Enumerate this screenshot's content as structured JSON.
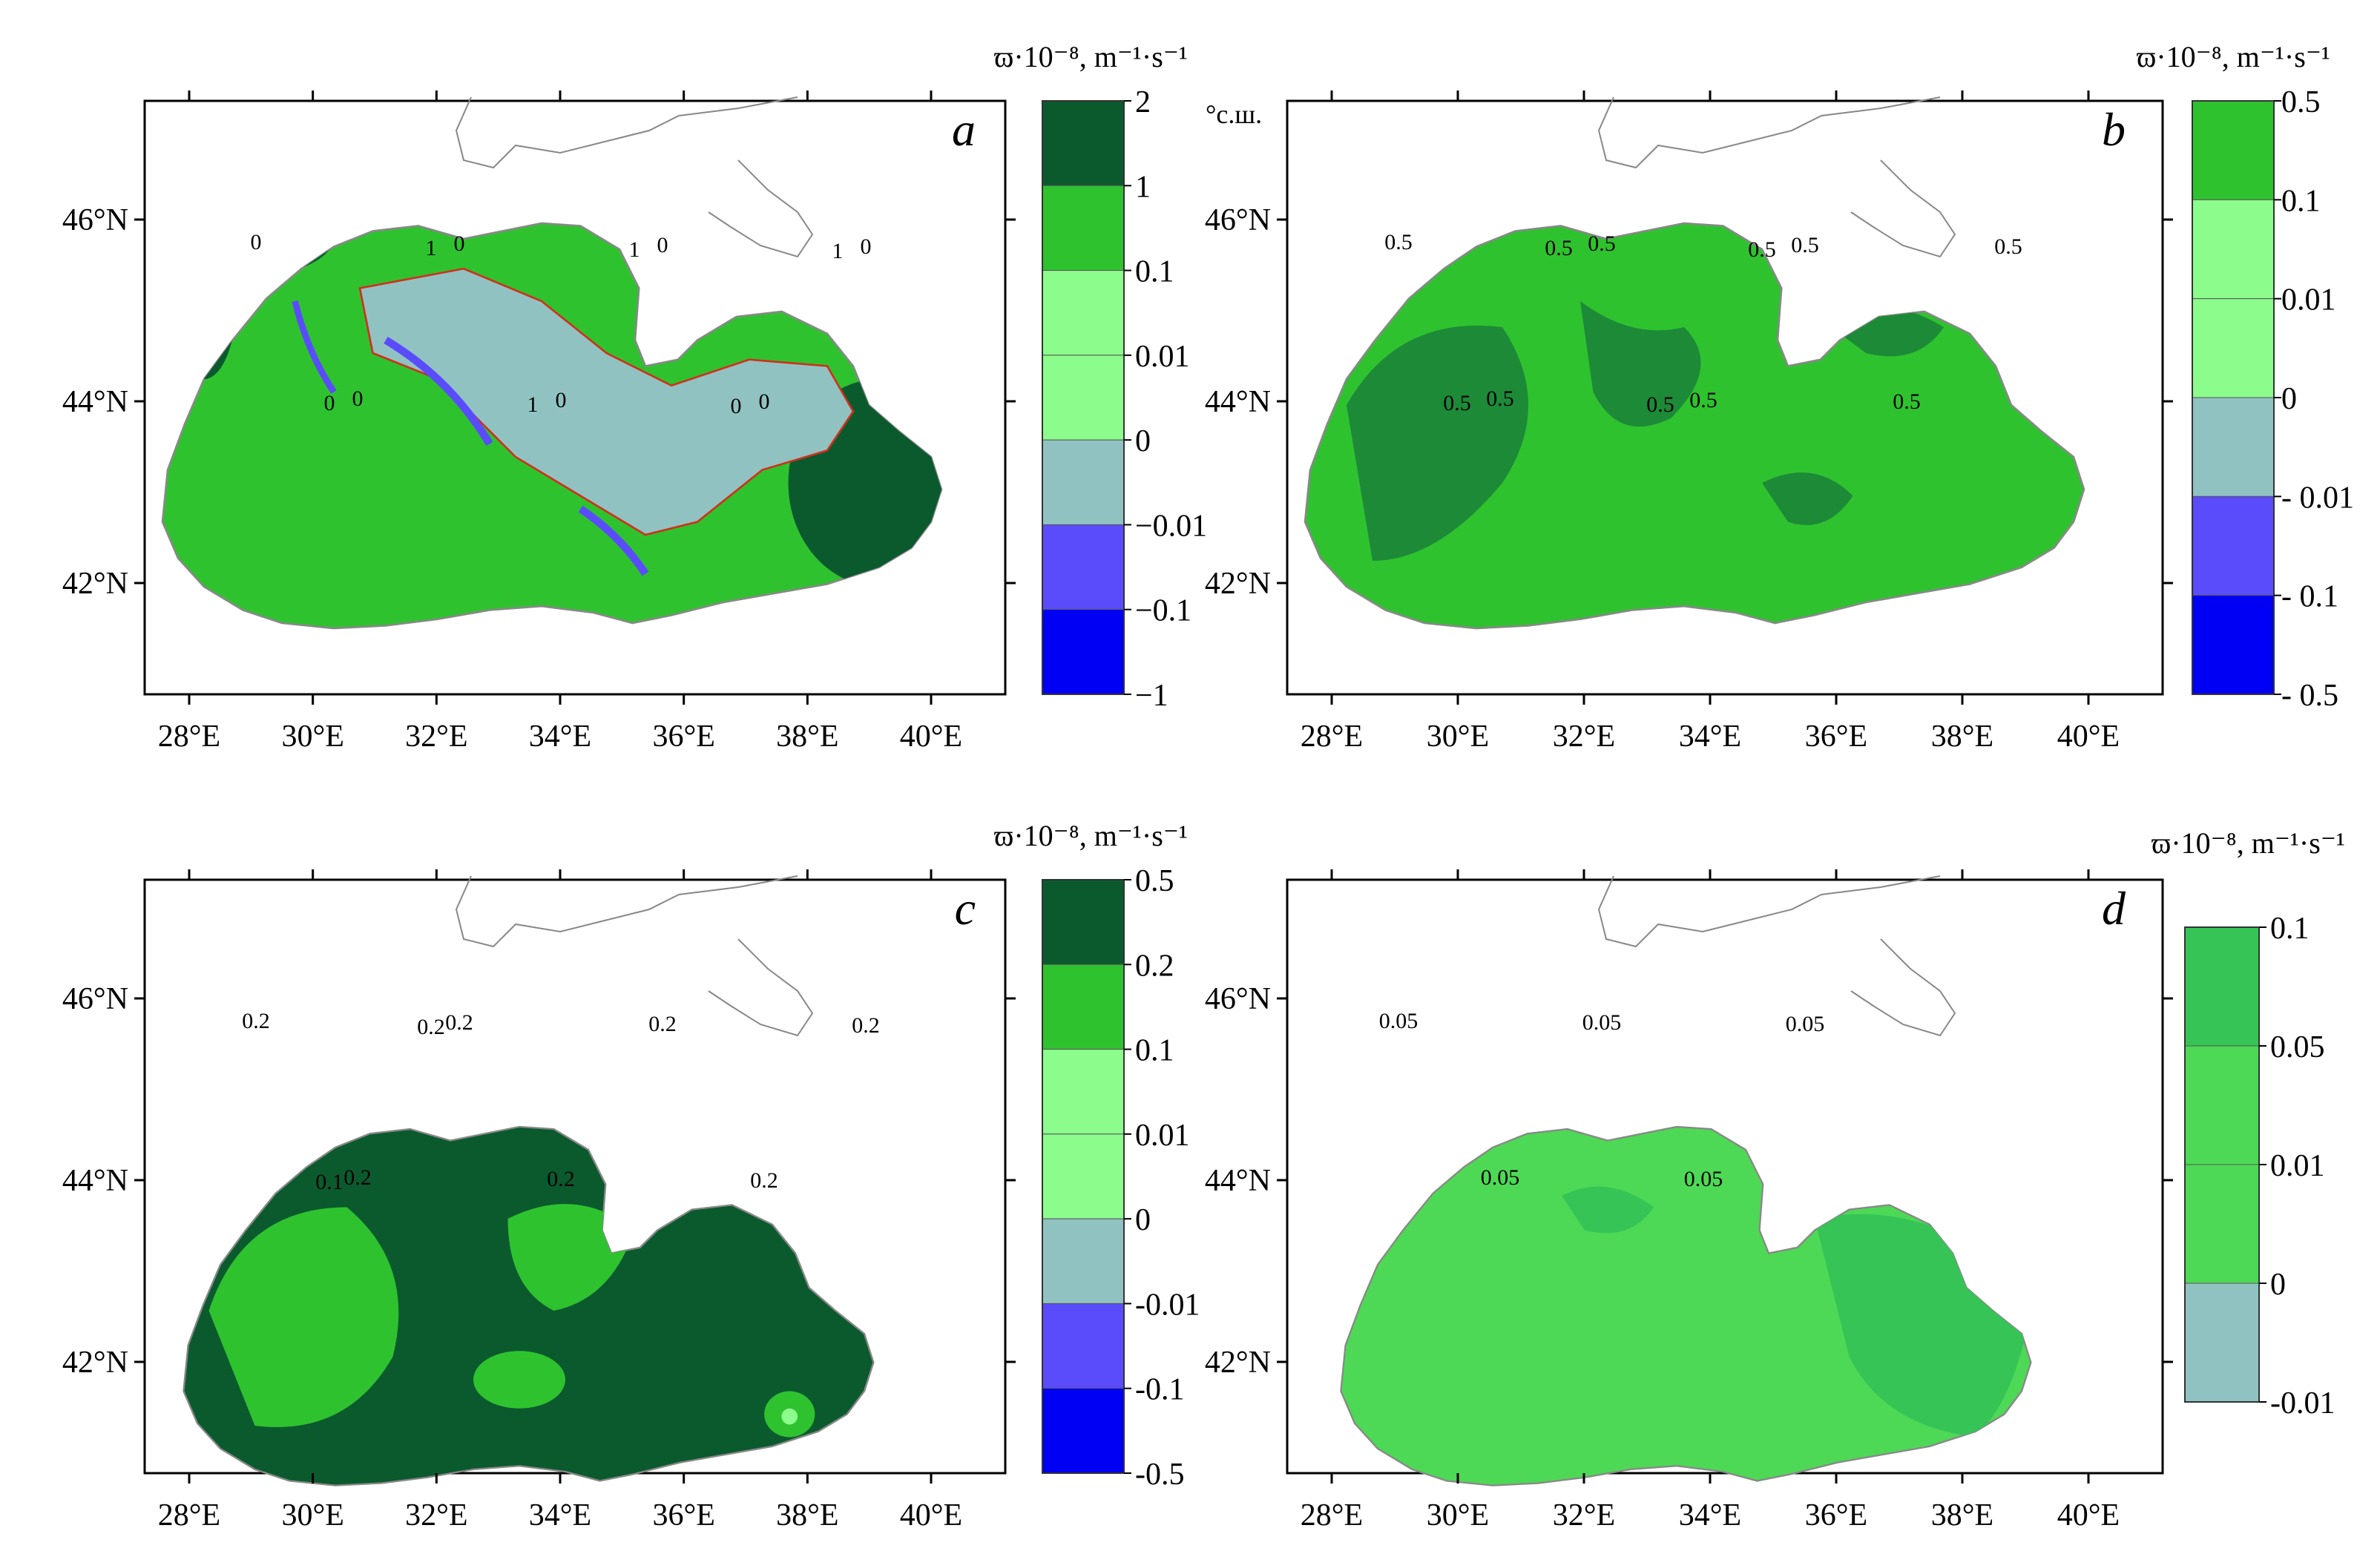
{
  "figure": {
    "panels": [
      {
        "id": "a",
        "letter": "a",
        "colorbar_title": "ϖ·10⁻⁸, m⁻¹·s⁻¹",
        "corner_label": "",
        "colors": [
          "#0a5a2e",
          "#2fc22f",
          "#8cfc8c",
          "#8cfc8c",
          "#91c2c2",
          "#5a4cfb",
          "#0000f5"
        ],
        "ticks": [
          "2",
          "1",
          "0.1",
          "0.01",
          "0",
          "−0.01",
          "−0.1",
          "−1"
        ],
        "contour_labels": [
          "0",
          "0",
          "0",
          "0",
          "0",
          "0",
          "0",
          "0",
          "1",
          "1",
          "1",
          "0",
          "1"
        ]
      },
      {
        "id": "b",
        "letter": "b",
        "colorbar_title": "ϖ·10⁻⁸, m⁻¹·s⁻¹",
        "corner_label": "°с.ш.",
        "colors": [
          "#2fc22f",
          "#8cfc8c",
          "#8cfc8c",
          "#91c2c2",
          "#5a4cfb",
          "#0000f5"
        ],
        "ticks": [
          "0.5",
          "0.1",
          "0.01",
          "0",
          "- 0.01",
          "- 0.1",
          "- 0.5"
        ],
        "contour_labels": [
          "0.5",
          "0.5",
          "0.5",
          "0.5",
          "0.5",
          "0.5",
          "0.5",
          "0.5",
          "0.5",
          "0.5",
          "0.5"
        ]
      },
      {
        "id": "c",
        "letter": "c",
        "colorbar_title": "ϖ·10⁻⁸, m⁻¹·s⁻¹",
        "corner_label": "",
        "colors": [
          "#0a5a2e",
          "#2fc22f",
          "#8cfc8c",
          "#8cfc8c",
          "#91c2c2",
          "#5a4cfb",
          "#0000f5"
        ],
        "ticks": [
          "0.5",
          "0.2",
          "0.1",
          "0.01",
          "0",
          "-0.01",
          "-0.1",
          "-0.5"
        ],
        "contour_labels": [
          "0.2",
          "0.2",
          "0.2",
          "0.2",
          "0.2",
          "0.2",
          "0.2",
          "0.1",
          "0.2"
        ]
      },
      {
        "id": "d",
        "letter": "d",
        "colorbar_title": "ϖ·10⁻⁸, m⁻¹·s⁻¹",
        "corner_label": "",
        "colors": [
          "#36c457",
          "#4dd955",
          "#4dd955",
          "#91c2c2"
        ],
        "ticks": [
          "0.1",
          "0.05",
          "0.01",
          "0",
          "-0.01"
        ],
        "contour_labels": [
          "0.05",
          "0.05",
          "0.05",
          "0.05",
          "0.05"
        ]
      }
    ],
    "lon_labels": [
      "28°E",
      "30°E",
      "32°E",
      "34°E",
      "36°E",
      "38°E",
      "40°E"
    ],
    "lat_labels": [
      "46°N",
      "44°N",
      "42°N"
    ]
  }
}
